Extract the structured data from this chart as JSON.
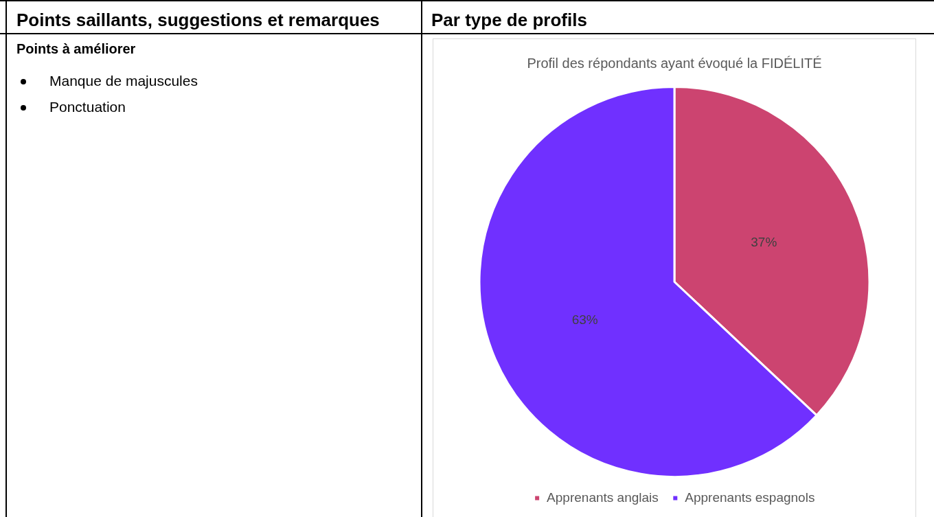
{
  "chart_data": {
    "type": "pie",
    "title": "Profil des répondants ayant évoqué la FIDÉLITÉ",
    "categories": [
      "Apprenants anglais",
      "Apprenants espagnols"
    ],
    "values": [
      37,
      63
    ],
    "value_labels": [
      "37%",
      "63%"
    ],
    "colors": [
      "#cc4470",
      "#7030ff"
    ],
    "legend": "bottom",
    "annotations": [
      "Points saillants, suggestions et remarques",
      "Par type de profils",
      "Points à améliorer",
      "Manque de majuscules",
      "Ponctuation"
    ]
  }
}
